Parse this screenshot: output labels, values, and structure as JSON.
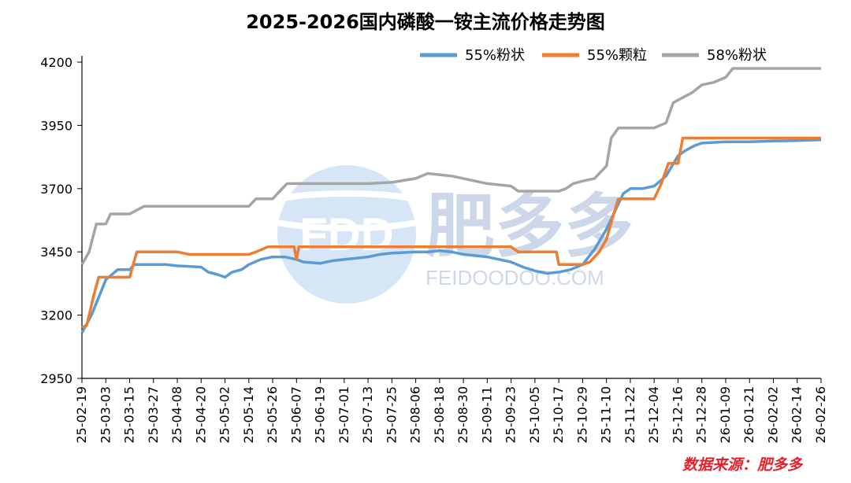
{
  "chart_data": {
    "type": "line",
    "title": "2025-2026国内磷酸一铵主流价格走势图",
    "source_note": "数据来源：肥多多",
    "watermark": {
      "logo": "FDD",
      "brand": "肥多多",
      "site": "FEIDOODOO.COM"
    },
    "ylim": [
      2950,
      4200
    ],
    "yticks": [
      "2950",
      "3200",
      "3450",
      "3700",
      "3950",
      "4200"
    ],
    "x_tick_labels": [
      "25-02-19",
      "25-03-03",
      "25-03-15",
      "25-03-27",
      "25-04-08",
      "25-04-20",
      "25-05-02",
      "25-05-14",
      "25-05-26",
      "25-06-07",
      "25-06-19",
      "25-07-01",
      "25-07-13",
      "25-07-25",
      "25-08-06",
      "25-08-18",
      "25-08-30",
      "25-09-11",
      "25-09-23",
      "25-10-05",
      "25-10-17",
      "25-10-29",
      "25-11-10",
      "25-11-22",
      "25-12-04",
      "25-12-16",
      "25-12-28",
      "26-01-09",
      "26-01-21",
      "26-02-02",
      "26-02-14",
      "26-02-26"
    ],
    "legend_position": "top-right",
    "series": [
      {
        "name": "55%粉状",
        "color": "#5b9bd5",
        "points": [
          [
            0,
            3130
          ],
          [
            0.4,
            3200
          ],
          [
            1,
            3340
          ],
          [
            1.5,
            3380
          ],
          [
            2,
            3380
          ],
          [
            2.2,
            3400
          ],
          [
            3,
            3400
          ],
          [
            3.5,
            3400
          ],
          [
            4,
            3395
          ],
          [
            5,
            3390
          ],
          [
            5.3,
            3370
          ],
          [
            5.7,
            3360
          ],
          [
            6,
            3350
          ],
          [
            6.3,
            3370
          ],
          [
            6.7,
            3380
          ],
          [
            7,
            3400
          ],
          [
            7.5,
            3420
          ],
          [
            8,
            3430
          ],
          [
            8.5,
            3430
          ],
          [
            9,
            3420
          ],
          [
            9.3,
            3410
          ],
          [
            10,
            3405
          ],
          [
            10.5,
            3415
          ],
          [
            11,
            3420
          ],
          [
            11.5,
            3425
          ],
          [
            12,
            3430
          ],
          [
            12.5,
            3440
          ],
          [
            13,
            3445
          ],
          [
            14,
            3450
          ],
          [
            14.5,
            3450
          ],
          [
            15,
            3455
          ],
          [
            15.5,
            3450
          ],
          [
            16,
            3440
          ],
          [
            17,
            3430
          ],
          [
            17.5,
            3420
          ],
          [
            18,
            3410
          ],
          [
            18.5,
            3390
          ],
          [
            19,
            3375
          ],
          [
            19.5,
            3365
          ],
          [
            20,
            3370
          ],
          [
            20.5,
            3380
          ],
          [
            21,
            3400
          ],
          [
            21.5,
            3460
          ],
          [
            22,
            3540
          ],
          [
            22.3,
            3600
          ],
          [
            22.7,
            3680
          ],
          [
            23,
            3700
          ],
          [
            23.5,
            3700
          ],
          [
            24,
            3710
          ],
          [
            24.5,
            3750
          ],
          [
            25,
            3830
          ],
          [
            25.3,
            3850
          ],
          [
            25.7,
            3870
          ],
          [
            26,
            3880
          ],
          [
            27,
            3885
          ],
          [
            28,
            3885
          ],
          [
            29,
            3888
          ],
          [
            30,
            3890
          ],
          [
            31,
            3893
          ]
        ]
      },
      {
        "name": "55%颗粒",
        "color": "#ed7d31",
        "points": [
          [
            0,
            3150
          ],
          [
            0.2,
            3160
          ],
          [
            0.5,
            3280
          ],
          [
            0.7,
            3350
          ],
          [
            1,
            3350
          ],
          [
            2,
            3350
          ],
          [
            2.3,
            3450
          ],
          [
            3,
            3450
          ],
          [
            4,
            3450
          ],
          [
            4.5,
            3440
          ],
          [
            6,
            3440
          ],
          [
            7,
            3440
          ],
          [
            7.3,
            3450
          ],
          [
            7.8,
            3470
          ],
          [
            8.5,
            3470
          ],
          [
            8.9,
            3470
          ],
          [
            9,
            3420
          ],
          [
            9.1,
            3470
          ],
          [
            10,
            3470
          ],
          [
            12,
            3470
          ],
          [
            14,
            3470
          ],
          [
            16,
            3470
          ],
          [
            18,
            3470
          ],
          [
            18.3,
            3450
          ],
          [
            19,
            3450
          ],
          [
            19.5,
            3450
          ],
          [
            19.9,
            3450
          ],
          [
            20,
            3400
          ],
          [
            21,
            3400
          ],
          [
            21.3,
            3410
          ],
          [
            21.7,
            3450
          ],
          [
            22,
            3500
          ],
          [
            22.3,
            3600
          ],
          [
            22.5,
            3660
          ],
          [
            23,
            3660
          ],
          [
            24,
            3660
          ],
          [
            24.3,
            3720
          ],
          [
            24.6,
            3800
          ],
          [
            25,
            3800
          ],
          [
            25.2,
            3900
          ],
          [
            26,
            3900
          ],
          [
            28,
            3900
          ],
          [
            30,
            3900
          ],
          [
            31,
            3900
          ]
        ]
      },
      {
        "name": "58%粉状",
        "color": "#a5a5a5",
        "points": [
          [
            0,
            3400
          ],
          [
            0.3,
            3450
          ],
          [
            0.6,
            3560
          ],
          [
            1,
            3560
          ],
          [
            1.2,
            3600
          ],
          [
            2,
            3600
          ],
          [
            2.6,
            3630
          ],
          [
            3,
            3630
          ],
          [
            5,
            3630
          ],
          [
            7,
            3630
          ],
          [
            7.3,
            3660
          ],
          [
            8,
            3660
          ],
          [
            8.3,
            3690
          ],
          [
            8.6,
            3720
          ],
          [
            9,
            3720
          ],
          [
            11,
            3720
          ],
          [
            12,
            3720
          ],
          [
            13,
            3725
          ],
          [
            14,
            3740
          ],
          [
            14.5,
            3760
          ],
          [
            15,
            3755
          ],
          [
            15.5,
            3750
          ],
          [
            16,
            3740
          ],
          [
            17,
            3720
          ],
          [
            18,
            3710
          ],
          [
            18.3,
            3690
          ],
          [
            19,
            3690
          ],
          [
            20,
            3690
          ],
          [
            20.3,
            3700
          ],
          [
            20.6,
            3720
          ],
          [
            21,
            3730
          ],
          [
            21.5,
            3740
          ],
          [
            22,
            3790
          ],
          [
            22.2,
            3900
          ],
          [
            22.5,
            3940
          ],
          [
            23,
            3940
          ],
          [
            24,
            3940
          ],
          [
            24.5,
            3960
          ],
          [
            24.8,
            4040
          ],
          [
            25.2,
            4060
          ],
          [
            25.6,
            4080
          ],
          [
            26,
            4110
          ],
          [
            26.5,
            4120
          ],
          [
            27,
            4140
          ],
          [
            27.3,
            4175
          ],
          [
            28,
            4175
          ],
          [
            30,
            4175
          ],
          [
            31,
            4175
          ]
        ]
      }
    ]
  }
}
